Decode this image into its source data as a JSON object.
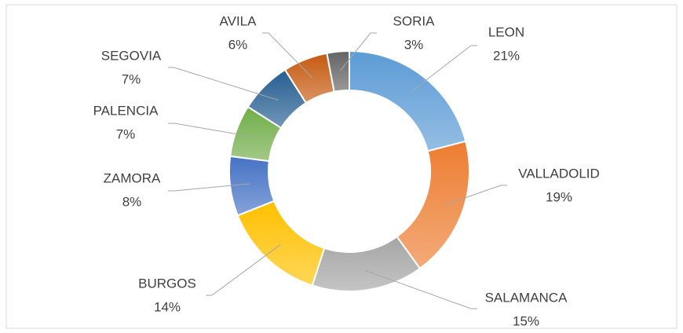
{
  "chart_data": {
    "type": "donut",
    "categories": [
      "LEON",
      "VALLADOLID",
      "SALAMANCA",
      "BURGOS",
      "ZAMORA",
      "PALENCIA",
      "SEGOVIA",
      "AVILA",
      "SORIA"
    ],
    "values": [
      21,
      19,
      15,
      14,
      8,
      7,
      7,
      6,
      3
    ],
    "value_labels": [
      "21%",
      "19%",
      "15%",
      "14%",
      "8%",
      "7%",
      "7%",
      "6%",
      "3%"
    ],
    "colors": [
      "#5b9bd5",
      "#ed7d31",
      "#a5a5a5",
      "#ffc000",
      "#4472c4",
      "#70ad47",
      "#255e91",
      "#c55a11",
      "#636363"
    ]
  }
}
